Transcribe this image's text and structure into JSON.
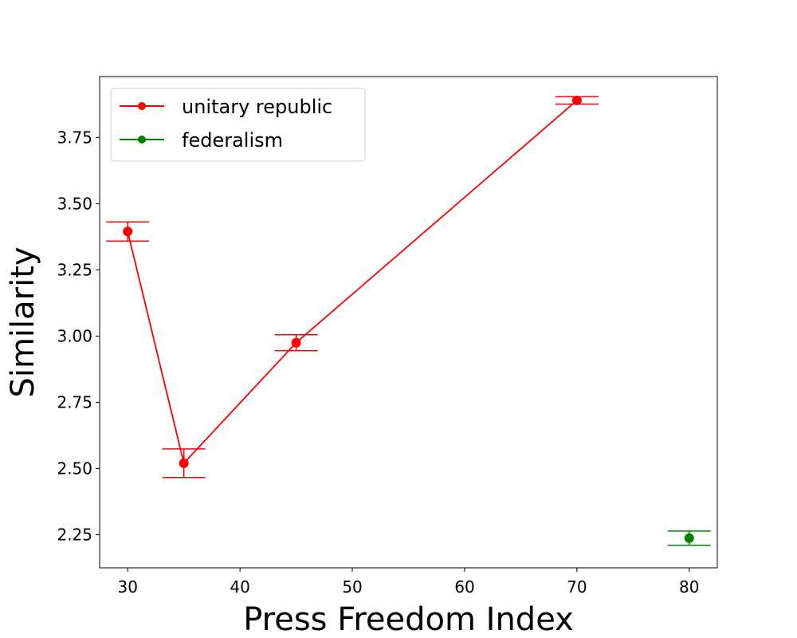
{
  "chart_data": {
    "type": "line",
    "title": "",
    "xlabel": "Press Freedom Index",
    "ylabel": "Similarity",
    "xlim": [
      27.5,
      82.5
    ],
    "ylim": [
      2.125,
      3.98
    ],
    "xticks": [
      30,
      40,
      50,
      60,
      70,
      80
    ],
    "yticks": [
      2.25,
      2.5,
      2.75,
      3.0,
      3.25,
      3.5,
      3.75
    ],
    "xtick_labels": [
      "30",
      "40",
      "50",
      "60",
      "70",
      "80"
    ],
    "ytick_labels": [
      "2.25",
      "2.50",
      "2.75",
      "3.00",
      "3.25",
      "3.50",
      "3.75"
    ],
    "grid": false,
    "legend_position": "upper-left",
    "series": [
      {
        "name": "unitary republic",
        "color": "#ff0000",
        "x": [
          30,
          35,
          45,
          70
        ],
        "y": [
          3.395,
          2.52,
          2.975,
          3.89
        ],
        "err": [
          0.036,
          0.054,
          0.03,
          0.014
        ]
      },
      {
        "name": "federalism",
        "color": "#008000",
        "x": [
          80
        ],
        "y": [
          2.237
        ],
        "err": [
          0.027
        ]
      }
    ]
  }
}
